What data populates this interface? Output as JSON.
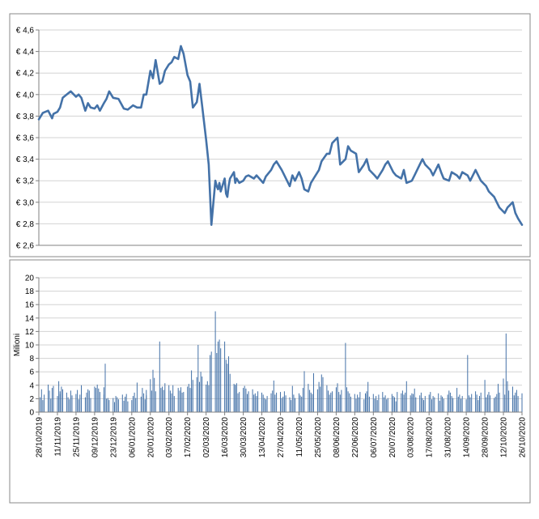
{
  "chart_data": [
    {
      "type": "line",
      "title": "",
      "xlabel": "",
      "ylabel": "",
      "ylim": [
        2.6,
        4.6
      ],
      "yticks": [
        {
          "value": 2.6,
          "label": "€ 2,6"
        },
        {
          "value": 2.8,
          "label": "€ 2,8"
        },
        {
          "value": 3.0,
          "label": "€ 3,0"
        },
        {
          "value": 3.2,
          "label": "€ 3,2"
        },
        {
          "value": 3.4,
          "label": "€ 3,4"
        },
        {
          "value": 3.6,
          "label": "€ 3,6"
        },
        {
          "value": 3.8,
          "label": "€ 3,8"
        },
        {
          "value": 4.0,
          "label": "€ 4,0"
        },
        {
          "value": 4.2,
          "label": "€ 4,2"
        },
        {
          "value": 4.4,
          "label": "€ 4,4"
        },
        {
          "value": 4.6,
          "label": "€ 4,6"
        }
      ],
      "grid": true,
      "legend": "none",
      "color": "#4472a8",
      "x_start": "2019-10-28",
      "x_end": "2020-10-26",
      "series": [
        {
          "x": [
            "2019-10-28",
            "2019-10-31",
            "2019-11-04",
            "2019-11-07",
            "2019-11-08",
            "2019-11-11",
            "2019-11-13",
            "2019-11-15",
            "2019-11-18",
            "2019-11-21",
            "2019-11-25",
            "2019-11-27",
            "2019-11-29",
            "2019-12-02",
            "2019-12-04",
            "2019-12-06",
            "2019-12-09",
            "2019-12-11",
            "2019-12-13",
            "2019-12-16",
            "2019-12-18",
            "2019-12-20",
            "2019-12-23",
            "2019-12-27",
            "2019-12-31",
            "2020-01-03",
            "2020-01-07",
            "2020-01-10",
            "2020-01-13",
            "2020-01-15",
            "2020-01-17",
            "2020-01-20",
            "2020-01-22",
            "2020-01-24",
            "2020-01-27",
            "2020-01-29",
            "2020-01-31",
            "2020-02-03",
            "2020-02-05",
            "2020-02-07",
            "2020-02-10",
            "2020-02-12",
            "2020-02-14",
            "2020-02-17",
            "2020-02-19",
            "2020-02-21",
            "2020-02-24",
            "2020-02-26",
            "2020-02-28",
            "2020-03-02",
            "2020-03-04",
            "2020-03-06",
            "2020-03-09",
            "2020-03-10",
            "2020-03-11",
            "2020-03-12",
            "2020-03-13",
            "2020-03-16",
            "2020-03-17",
            "2020-03-18",
            "2020-03-19",
            "2020-03-20",
            "2020-03-23",
            "2020-03-24",
            "2020-03-25",
            "2020-03-27",
            "2020-03-30",
            "2020-04-01",
            "2020-04-03",
            "2020-04-07",
            "2020-04-09",
            "2020-04-14",
            "2020-04-16",
            "2020-04-20",
            "2020-04-22",
            "2020-04-24",
            "2020-04-28",
            "2020-04-30",
            "2020-05-04",
            "2020-05-06",
            "2020-05-08",
            "2020-05-11",
            "2020-05-13",
            "2020-05-15",
            "2020-05-18",
            "2020-05-20",
            "2020-05-22",
            "2020-05-26",
            "2020-05-28",
            "2020-06-01",
            "2020-06-03",
            "2020-06-05",
            "2020-06-09",
            "2020-06-11",
            "2020-06-15",
            "2020-06-17",
            "2020-06-19",
            "2020-06-23",
            "2020-06-25",
            "2020-06-29",
            "2020-07-01",
            "2020-07-03",
            "2020-07-07",
            "2020-07-09",
            "2020-07-13",
            "2020-07-15",
            "2020-07-17",
            "2020-07-21",
            "2020-07-23",
            "2020-07-27",
            "2020-07-29",
            "2020-07-31",
            "2020-08-04",
            "2020-08-06",
            "2020-08-10",
            "2020-08-12",
            "2020-08-14",
            "2020-08-18",
            "2020-08-20",
            "2020-08-24",
            "2020-08-26",
            "2020-08-28",
            "2020-09-01",
            "2020-09-03",
            "2020-09-07",
            "2020-09-09",
            "2020-09-11",
            "2020-09-15",
            "2020-09-17",
            "2020-09-21",
            "2020-09-23",
            "2020-09-25",
            "2020-09-29",
            "2020-10-01",
            "2020-10-05",
            "2020-10-07",
            "2020-10-09",
            "2020-10-13",
            "2020-10-15",
            "2020-10-19",
            "2020-10-21",
            "2020-10-23",
            "2020-10-26"
          ],
          "y": [
            3.77,
            3.83,
            3.85,
            3.78,
            3.82,
            3.84,
            3.88,
            3.97,
            4.0,
            4.03,
            3.98,
            4.0,
            3.97,
            3.85,
            3.92,
            3.88,
            3.87,
            3.9,
            3.85,
            3.92,
            3.96,
            4.03,
            3.97,
            3.96,
            3.87,
            3.86,
            3.9,
            3.88,
            3.88,
            4.0,
            4.0,
            4.22,
            4.15,
            4.32,
            4.1,
            4.12,
            4.22,
            4.28,
            4.3,
            4.35,
            4.33,
            4.45,
            4.38,
            4.18,
            4.12,
            3.88,
            3.93,
            4.1,
            3.9,
            3.58,
            3.35,
            2.79,
            3.2,
            3.15,
            3.12,
            3.18,
            3.1,
            3.22,
            3.08,
            3.05,
            3.15,
            3.22,
            3.28,
            3.18,
            3.22,
            3.18,
            3.2,
            3.24,
            3.25,
            3.22,
            3.25,
            3.18,
            3.24,
            3.3,
            3.35,
            3.38,
            3.3,
            3.25,
            3.15,
            3.25,
            3.2,
            3.28,
            3.22,
            3.12,
            3.1,
            3.18,
            3.22,
            3.3,
            3.38,
            3.45,
            3.45,
            3.55,
            3.6,
            3.35,
            3.4,
            3.52,
            3.48,
            3.45,
            3.28,
            3.35,
            3.4,
            3.3,
            3.25,
            3.22,
            3.3,
            3.35,
            3.38,
            3.28,
            3.25,
            3.22,
            3.3,
            3.18,
            3.2,
            3.25,
            3.35,
            3.4,
            3.35,
            3.3,
            3.25,
            3.35,
            3.28,
            3.22,
            3.2,
            3.28,
            3.25,
            3.22,
            3.28,
            3.25,
            3.2,
            3.3,
            3.25,
            3.2,
            3.15,
            3.1,
            3.05,
            3.0,
            2.95,
            2.9,
            2.95,
            3.0,
            2.9,
            2.85,
            2.79
          ]
        }
      ]
    },
    {
      "type": "bar",
      "title": "",
      "xlabel": "",
      "ylabel": "Milioni",
      "ylim": [
        0,
        20
      ],
      "yticks": [
        0,
        2,
        4,
        6,
        8,
        10,
        12,
        14,
        16,
        18,
        20
      ],
      "grid": true,
      "legend": "none",
      "color": "#4472a8",
      "x_start": "2019-10-28",
      "x_end": "2020-10-26",
      "tick_labels": [
        "28/10/2019",
        "11/11/2019",
        "25/11/2019",
        "09/12/2019",
        "23/12/2019",
        "06/01/2020",
        "20/01/2020",
        "03/02/2020",
        "17/02/2020",
        "02/03/2020",
        "16/03/2020",
        "30/03/2020",
        "13/04/2020",
        "27/04/2020",
        "11/05/2020",
        "25/05/2020",
        "08/06/2020",
        "22/06/2020",
        "06/07/2020",
        "20/07/2020",
        "03/08/2020",
        "17/08/2020",
        "31/08/2020",
        "14/09/2020",
        "28/09/2020",
        "12/10/2020",
        "26/10/2020"
      ],
      "values": [
        2.8,
        2.2,
        3.4,
        1.8,
        2.6,
        4.1,
        3.2,
        2.0,
        3.6,
        3.9,
        2.4,
        4.6,
        3.1,
        2.7,
        3.8,
        3.4,
        2.9,
        2.2,
        1.9,
        3.2,
        2.5,
        2.7,
        3.3,
        1.9,
        2.6,
        4.0,
        2.2,
        2.9,
        3.4,
        3.2,
        2.1,
        3.8,
        3.6,
        4.1,
        3.5,
        3.0,
        3.7,
        2.6,
        7.2,
        2.0,
        2.1,
        1.8,
        2.1,
        1.5,
        2.4,
        2.2,
        1.9,
        2.6,
        1.7,
        2.3,
        2.7,
        1.6,
        1.8,
        2.4,
        2.9,
        2.1,
        4.4,
        2.3,
        3.6,
        2.8,
        1.9,
        2.5,
        3.3,
        4.9,
        3.2,
        6.3,
        5.1,
        3.1,
        10.5,
        3.6,
        3.8,
        3.3,
        4.3,
        4.0,
        3.2,
        2.8,
        4.0,
        2.4,
        3.6,
        3.2,
        3.7,
        2.9,
        3.0,
        3.8,
        4.2,
        3.6,
        3.5,
        6.2,
        4.8,
        5.2,
        10.0,
        4.5,
        6.0,
        5.3,
        4.1,
        4.6,
        4.0,
        8.5,
        9.0,
        15.0,
        8.8,
        10.5,
        10.8,
        9.5,
        10.5,
        7.8,
        7.2,
        8.3,
        5.7,
        4.2,
        4.1,
        3.9,
        4.3,
        2.8,
        3.0,
        3.6,
        3.9,
        3.5,
        2.7,
        3.1,
        3.4,
        2.6,
        2.8,
        2.4,
        3.1,
        2.9,
        2.6,
        2.1,
        1.9,
        2.4,
        2.8,
        3.2,
        4.7,
        2.6,
        2.9,
        3.0,
        2.7,
        2.1,
        2.3,
        3.1,
        2.5,
        2.2,
        1.8,
        3.9,
        2.6,
        2.1,
        2.8,
        2.5,
        2.3,
        3.6,
        6.1,
        4.2,
        3.3,
        2.9,
        2.7,
        5.8,
        3.4,
        4.5,
        3.8,
        5.6,
        3.6,
        5.2,
        4.0,
        3.2,
        2.6,
        2.9,
        3.1,
        3.7,
        4.3,
        3.0,
        2.6,
        3.3,
        10.3,
        3.7,
        3.1,
        2.8,
        2.3,
        2.7,
        2.0,
        2.6,
        2.2,
        3.0,
        1.9,
        2.8,
        2.6,
        3.1,
        4.5,
        2.3,
        2.7,
        2.0,
        2.4,
        1.8,
        2.6,
        3.0,
        2.2,
        2.5,
        1.9,
        2.1,
        2.7,
        2.4,
        2.2,
        1.6,
        3.0,
        2.8,
        3.2,
        2.6,
        2.9,
        4.6,
        2.5,
        2.8,
        2.3,
        2.7,
        3.5,
        2.2,
        2.5,
        2.9,
        2.1,
        1.8,
        2.4,
        2.6,
        3.0,
        1.9,
        2.4,
        2.2,
        2.8,
        1.7,
        2.5,
        2.3,
        2.0,
        2.6,
        3.2,
        2.9,
        2.4,
        2.1,
        3.6,
        1.8,
        2.3,
        2.6,
        2.0,
        2.4,
        1.9,
        8.5,
        2.5,
        2.2,
        2.7,
        3.1,
        2.6,
        1.8,
        2.4,
        2.9,
        4.8,
        2.2,
        2.6,
        3.0,
        2.5,
        2.1,
        2.3,
        2.7,
        3.3,
        4.2,
        2.9,
        5.0,
        2.6,
        11.7,
        4.6,
        3.2,
        3.8,
        2.5,
        2.9,
        3.3,
        2.4,
        2.8
      ]
    }
  ]
}
